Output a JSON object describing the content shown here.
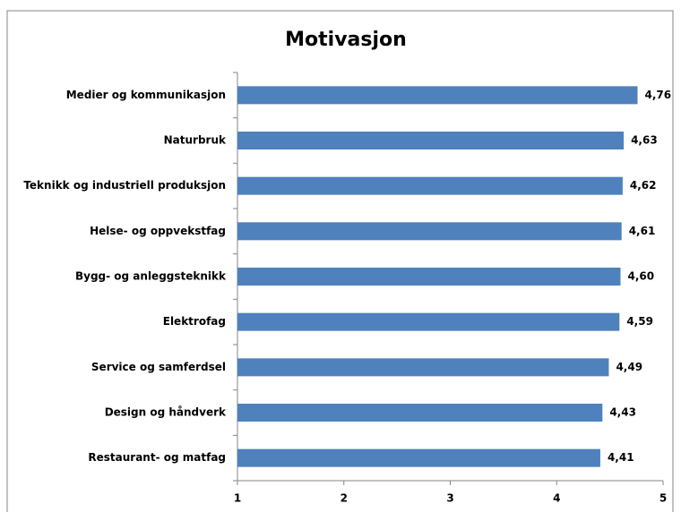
{
  "chart_data": {
    "type": "bar",
    "orientation": "horizontal",
    "title": "Motivasjon",
    "categories": [
      "Medier og kommunikasjon",
      "Naturbruk",
      "Teknikk og industriell produksjon",
      "Helse- og oppvekstfag",
      "Bygg- og anleggsteknikk",
      "Elektrofag",
      "Service og samferdsel",
      "Design og håndverk",
      "Restaurant- og matfag"
    ],
    "values": [
      4.76,
      4.63,
      4.62,
      4.61,
      4.6,
      4.59,
      4.49,
      4.43,
      4.41
    ],
    "value_labels": [
      "4,76",
      "4,63",
      "4,62",
      "4,61",
      "4,60",
      "4,59",
      "4,49",
      "4,43",
      "4,41"
    ],
    "color": "#4f81bd",
    "xlim": [
      1,
      5
    ],
    "xticks": [
      1,
      2,
      3,
      4,
      5
    ],
    "grid": false
  }
}
